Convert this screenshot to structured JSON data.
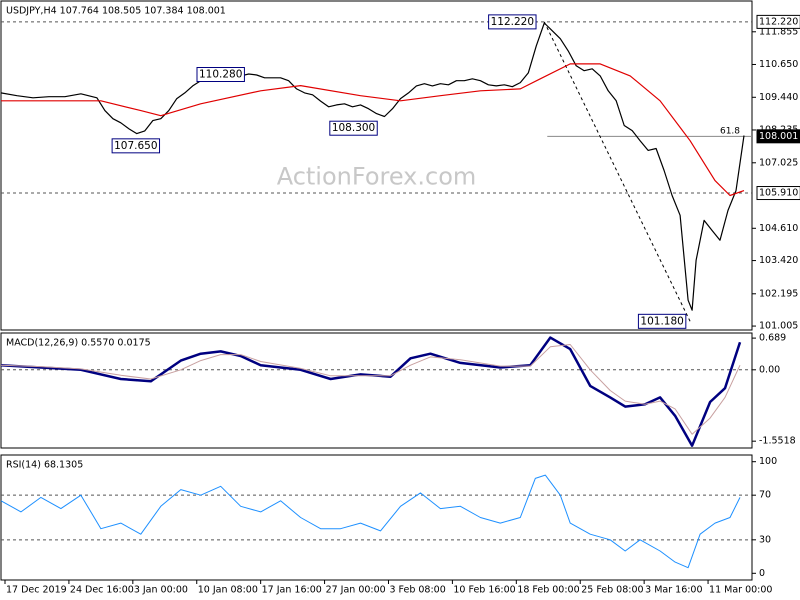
{
  "chart_data": [
    {
      "type": "line",
      "title": "USDJPY,H4  107.764 108.505 107.384 108.001",
      "watermark": "ActionForex.com",
      "xlim": [
        0,
        188
      ],
      "ylim": [
        100.86,
        112.99
      ],
      "yticks": [
        111.855,
        {
          "value": 110.65,
          "label": "110.650"
        },
        {
          "value": 109.44,
          "label": "109.440"
        },
        108.235,
        107.025,
        {
          "value": 104.61,
          "label": "104.610"
        },
        {
          "value": 103.42,
          "label": "103.420"
        },
        102.195,
        101.005
      ],
      "x": [
        0,
        4,
        8,
        12,
        16,
        20,
        24,
        26,
        28,
        30,
        32,
        34,
        36,
        38,
        40,
        42,
        44,
        46,
        48,
        50,
        52,
        54,
        56,
        58,
        60,
        62,
        64,
        66,
        68,
        70,
        72,
        74,
        76,
        78,
        80,
        82,
        84,
        86,
        88,
        90,
        92,
        94,
        96,
        98,
        100,
        102,
        104,
        106,
        108,
        110,
        112,
        114,
        116,
        118,
        120,
        122,
        124,
        126,
        128,
        130,
        132,
        134,
        136,
        138,
        140,
        142,
        144,
        146,
        148,
        150,
        152,
        154,
        156,
        158,
        160,
        162,
        164,
        166,
        168,
        170,
        172,
        173,
        174,
        176,
        178,
        180,
        182,
        184,
        186
      ],
      "series": [
        {
          "name": "USDJPY",
          "color": "#000000",
          "width": 1.2,
          "values": [
            109.6,
            109.5,
            109.42,
            109.46,
            109.46,
            109.57,
            109.42,
            108.95,
            108.65,
            108.5,
            108.28,
            108.1,
            108.2,
            108.58,
            108.65,
            108.95,
            109.39,
            109.6,
            109.86,
            110.05,
            110.2,
            110.2,
            110.12,
            110.23,
            110.23,
            110.3,
            110.26,
            110.16,
            110.16,
            110.16,
            110.05,
            109.75,
            109.6,
            109.53,
            109.3,
            109.09,
            109.16,
            109.2,
            109.09,
            109.16,
            109.02,
            108.84,
            108.73,
            109.02,
            109.39,
            109.6,
            109.86,
            109.94,
            109.86,
            109.94,
            109.9,
            110.05,
            110.05,
            110.12,
            110.05,
            109.9,
            109.86,
            109.9,
            109.83,
            109.98,
            110.34,
            111.34,
            112.18,
            111.89,
            111.6,
            111.15,
            110.6,
            110.42,
            110.49,
            110.23,
            109.68,
            109.31,
            108.4,
            108.21,
            107.84,
            107.48,
            107.55,
            106.74,
            105.82,
            105.09,
            101.96,
            101.59,
            103.43,
            104.9,
            104.53,
            104.17,
            105.27,
            106.0,
            108.03
          ]
        },
        {
          "name": "MA",
          "color": "#e00000",
          "width": 1.2,
          "x": [
            0,
            25,
            35,
            40,
            50,
            65,
            75,
            90,
            100,
            110,
            120,
            130,
            135,
            142.5,
            150,
            157.5,
            165,
            172.5,
            178.75,
            182.5,
            186
          ],
          "values": [
            109.31,
            109.31,
            108.95,
            108.76,
            109.2,
            109.68,
            109.87,
            109.5,
            109.31,
            109.5,
            109.68,
            109.75,
            110.12,
            110.67,
            110.67,
            110.23,
            109.31,
            107.84,
            106.37,
            105.82,
            106.0
          ]
        }
      ],
      "levels": [
        {
          "value": 112.22,
          "label": "112.220",
          "dashed": true
        },
        {
          "value": 108.001,
          "label": "108.001",
          "from": 136.75,
          "current": true
        },
        {
          "value": 105.91,
          "label": "105.910",
          "dashed": true
        }
      ],
      "trendline": {
        "x": [
          136,
          172.5
        ],
        "y": [
          112.22,
          101.18
        ]
      },
      "annotations": [
        {
          "label": "112.220",
          "x": 128,
          "y": 112.22,
          "boxed": true
        },
        {
          "label": "110.280",
          "x": 55,
          "y": 110.28,
          "boxed": true
        },
        {
          "label": "107.650",
          "x": 33.75,
          "y": 107.65,
          "boxed": true
        },
        {
          "label": "108.300",
          "x": 88.25,
          "y": 108.3,
          "boxed": true
        },
        {
          "label": "101.180",
          "x": 165.5,
          "y": 101.18,
          "boxed": true
        },
        {
          "label": "61.8",
          "x": 185,
          "y": 108.2,
          "boxed": false
        }
      ]
    },
    {
      "type": "line",
      "title": "MACD(12,26,9) 0.5570 0.0175",
      "xlim": [
        0,
        188
      ],
      "ylim": [
        -1.7,
        0.8
      ],
      "yticks": [
        0.689,
        {
          "value": 0,
          "label": "0.00"
        },
        -1.5518
      ],
      "levels": [
        {
          "value": 0,
          "dashed": true
        }
      ],
      "x": [
        0,
        10,
        20,
        30,
        37.5,
        45,
        50,
        55,
        60,
        65,
        75,
        82.5,
        90,
        97.5,
        102.5,
        107.5,
        115,
        125,
        132.5,
        137.5,
        142.5,
        147.5,
        152.5,
        156.25,
        161.25,
        165,
        168.75,
        173,
        177.5,
        181.25,
        185
      ],
      "series": [
        {
          "name": "MACD",
          "color": "#000080",
          "width": 2.5,
          "values": [
            0.1,
            0.05,
            0.0,
            -0.2,
            -0.25,
            0.2,
            0.35,
            0.4,
            0.3,
            0.1,
            0.0,
            -0.2,
            -0.1,
            -0.15,
            0.25,
            0.35,
            0.15,
            0.05,
            0.1,
            0.7,
            0.45,
            -0.35,
            -0.6,
            -0.8,
            -0.75,
            -0.6,
            -1.0,
            -1.65,
            -0.7,
            -0.4,
            0.6
          ]
        },
        {
          "name": "Signal",
          "color": "#c8a0a0",
          "width": 1,
          "values": [
            0.1,
            0.07,
            0.02,
            -0.12,
            -0.2,
            0.0,
            0.2,
            0.33,
            0.33,
            0.18,
            0.03,
            -0.13,
            -0.13,
            -0.13,
            0.1,
            0.28,
            0.22,
            0.08,
            0.08,
            0.5,
            0.55,
            0.0,
            -0.45,
            -0.68,
            -0.75,
            -0.68,
            -0.85,
            -1.4,
            -1.05,
            -0.6,
            0.1
          ]
        }
      ]
    },
    {
      "type": "line",
      "title": "RSI(14) 68.1305",
      "xlim": [
        0,
        188
      ],
      "ylim": [
        -6,
        106
      ],
      "yticks": [
        100,
        70,
        30,
        0
      ],
      "levels": [
        {
          "value": 70,
          "dashed": true
        },
        {
          "value": 30,
          "dashed": true
        }
      ],
      "x": [
        0,
        5,
        10,
        15,
        20,
        25,
        30,
        35,
        40,
        45,
        50,
        55,
        60,
        65,
        70,
        75,
        80,
        85,
        90,
        95,
        100,
        105,
        110,
        115,
        120,
        125,
        130,
        133.75,
        136.25,
        140,
        142.5,
        147.5,
        152.5,
        156.25,
        160,
        165,
        168.75,
        172,
        175,
        178.75,
        182.5,
        185
      ],
      "series": [
        {
          "name": "RSI",
          "color": "#1e90ff",
          "width": 1,
          "values": [
            65,
            55,
            68,
            58,
            70,
            40,
            45,
            35,
            60,
            75,
            70,
            78,
            60,
            55,
            65,
            50,
            40,
            40,
            45,
            38,
            60,
            72,
            58,
            60,
            50,
            45,
            50,
            85,
            88,
            70,
            45,
            35,
            30,
            20,
            30,
            20,
            10,
            5,
            35,
            45,
            50,
            68
          ]
        }
      ],
      "xticks": [
        {
          "value": 1,
          "label": "17 Dec 2019"
        },
        {
          "value": 17,
          "label": "24 Dec 16:00"
        },
        {
          "value": 33,
          "label": "3 Jan 00:00"
        },
        {
          "value": 49,
          "label": "10 Jan 08:00"
        },
        {
          "value": 65,
          "label": "17 Jan 16:00"
        },
        {
          "value": 81,
          "label": "27 Jan 00:00"
        },
        {
          "value": 97,
          "label": "3 Feb 08:00"
        },
        {
          "value": 113,
          "label": "10 Feb 16:00"
        },
        {
          "value": 129,
          "label": "18 Feb 00:00"
        },
        {
          "value": 145,
          "label": "25 Feb 08:00"
        },
        {
          "value": 161,
          "label": "3 Mar 16:00"
        },
        {
          "value": 177,
          "label": "11 Mar 00:00"
        }
      ]
    }
  ]
}
